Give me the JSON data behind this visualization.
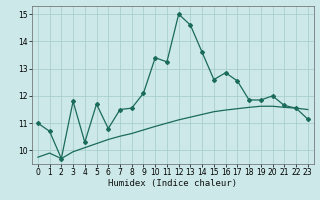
{
  "xlabel": "Humidex (Indice chaleur)",
  "xlim": [
    -0.5,
    23.5
  ],
  "ylim": [
    9.5,
    15.3
  ],
  "yticks": [
    10,
    11,
    12,
    13,
    14,
    15
  ],
  "xticks": [
    0,
    1,
    2,
    3,
    4,
    5,
    6,
    7,
    8,
    9,
    10,
    11,
    12,
    13,
    14,
    15,
    16,
    17,
    18,
    19,
    20,
    21,
    22,
    23
  ],
  "bg_color": "#cce8e8",
  "line_color": "#1a6b5a",
  "grid_color": "#aacece",
  "series1_x": [
    0,
    1,
    2,
    3,
    4,
    5,
    6,
    7,
    8,
    9,
    10,
    11,
    12,
    13,
    14,
    15,
    16,
    17,
    18,
    19,
    20,
    21,
    22,
    23
  ],
  "series1_y": [
    11.0,
    10.7,
    9.7,
    11.8,
    10.3,
    11.7,
    10.8,
    11.5,
    11.55,
    12.1,
    13.4,
    13.25,
    15.0,
    14.6,
    13.6,
    12.6,
    12.85,
    12.55,
    11.85,
    11.85,
    12.0,
    11.65,
    11.55,
    11.15
  ],
  "series2_x": [
    0,
    1,
    2,
    3,
    4,
    5,
    6,
    7,
    8,
    9,
    10,
    11,
    12,
    13,
    14,
    15,
    16,
    17,
    18,
    19,
    20,
    21,
    22,
    23
  ],
  "series2_y": [
    9.75,
    9.9,
    9.7,
    9.95,
    10.1,
    10.25,
    10.4,
    10.52,
    10.62,
    10.75,
    10.88,
    11.0,
    11.12,
    11.22,
    11.32,
    11.42,
    11.48,
    11.53,
    11.58,
    11.62,
    11.62,
    11.58,
    11.55,
    11.5
  ]
}
